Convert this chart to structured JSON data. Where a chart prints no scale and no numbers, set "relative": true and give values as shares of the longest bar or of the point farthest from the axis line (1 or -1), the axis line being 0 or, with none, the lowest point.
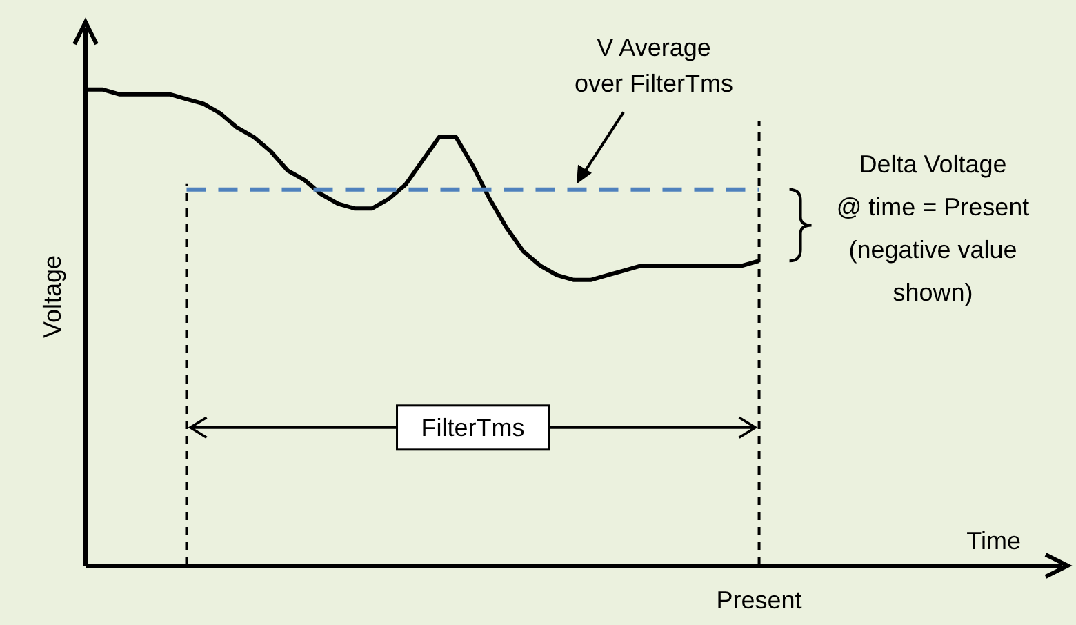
{
  "chart_data": {
    "type": "line",
    "relative": true,
    "xlabel": "Time",
    "ylabel": "Voltage",
    "categories": [
      null,
      null,
      null,
      null,
      null,
      null,
      null,
      null,
      null,
      null,
      null,
      null,
      null,
      null,
      null,
      null,
      null,
      null,
      null,
      null,
      null,
      null,
      null,
      null,
      null,
      null,
      null,
      null,
      null,
      null,
      null,
      null,
      null,
      null,
      null,
      null,
      null,
      null,
      null,
      null,
      null,
      null,
      null,
      null,
      null,
      null,
      null,
      null,
      null,
      null,
      null,
      null,
      null,
      null,
      null,
      null,
      null,
      null,
      null
    ],
    "series": [
      {
        "color": "#000000",
        "line_style": "solid",
        "values": [
          1.0,
          1.0,
          0.99,
          0.99,
          0.99,
          0.99,
          0.98,
          0.97,
          0.95,
          0.92,
          0.9,
          0.87,
          0.83,
          0.81,
          0.78,
          0.76,
          0.75,
          0.75,
          0.77,
          0.8,
          0.85,
          0.9,
          0.9,
          0.84,
          0.77,
          0.71,
          0.66,
          0.63,
          0.61,
          0.6,
          0.6,
          0.61,
          0.62,
          0.63,
          0.63,
          0.63,
          0.63,
          0.63,
          0.63,
          0.63,
          0.64,
          null,
          null,
          null,
          null,
          null,
          null,
          null,
          null,
          null,
          null,
          null,
          null,
          null,
          null,
          null,
          null,
          null,
          null
        ]
      },
      {
        "color": "#4f81bd",
        "line_style": "dashed",
        "values": [
          null,
          null,
          null,
          null,
          null,
          null,
          0.79,
          0.79,
          0.79,
          0.79,
          0.79,
          0.79,
          0.79,
          0.79,
          0.79,
          0.79,
          0.79,
          0.79,
          0.79,
          0.79,
          0.79,
          0.79,
          0.79,
          0.79,
          0.79,
          0.79,
          0.79,
          0.79,
          0.79,
          0.79,
          0.79,
          0.79,
          0.79,
          0.79,
          0.79,
          0.79,
          0.79,
          0.79,
          0.79,
          0.79,
          0.79,
          null,
          null,
          null,
          null,
          null,
          null,
          null,
          null,
          null,
          null,
          null,
          null,
          null,
          null,
          null,
          null,
          null,
          null
        ]
      }
    ],
    "annotations": [
      "V Average\nover FilterTms",
      "FilterTms",
      "Delta Voltage\n@ time = Present\n(negative value\nshown)",
      "Present"
    ]
  }
}
